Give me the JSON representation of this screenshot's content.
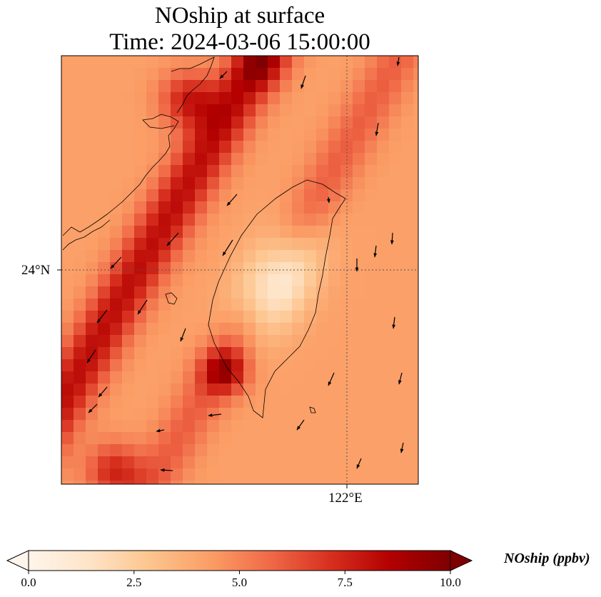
{
  "title": {
    "line1": "NOship at surface",
    "line2": "Time: 2024-03-06 15:00:00"
  },
  "map": {
    "gridlines": {
      "lat_label": "24°N",
      "lon_label": "122°E"
    },
    "field": {
      "variable": "NOship",
      "vmin": 0,
      "vmax": 10
    }
  },
  "colorbar": {
    "label": "NOship (ppbv)",
    "ticks": [
      "0.0",
      "2.5",
      "5.0",
      "7.5",
      "10.0"
    ],
    "colors": [
      "#fff5eb",
      "#fee4c8",
      "#fdc58f",
      "#fb9e66",
      "#f06a48",
      "#d7301f",
      "#b30000",
      "#7f0000"
    ]
  },
  "icons": [
    "wind-vector-arrow-icon",
    "colorbar-extend-min-icon",
    "colorbar-extend-max-icon"
  ]
}
